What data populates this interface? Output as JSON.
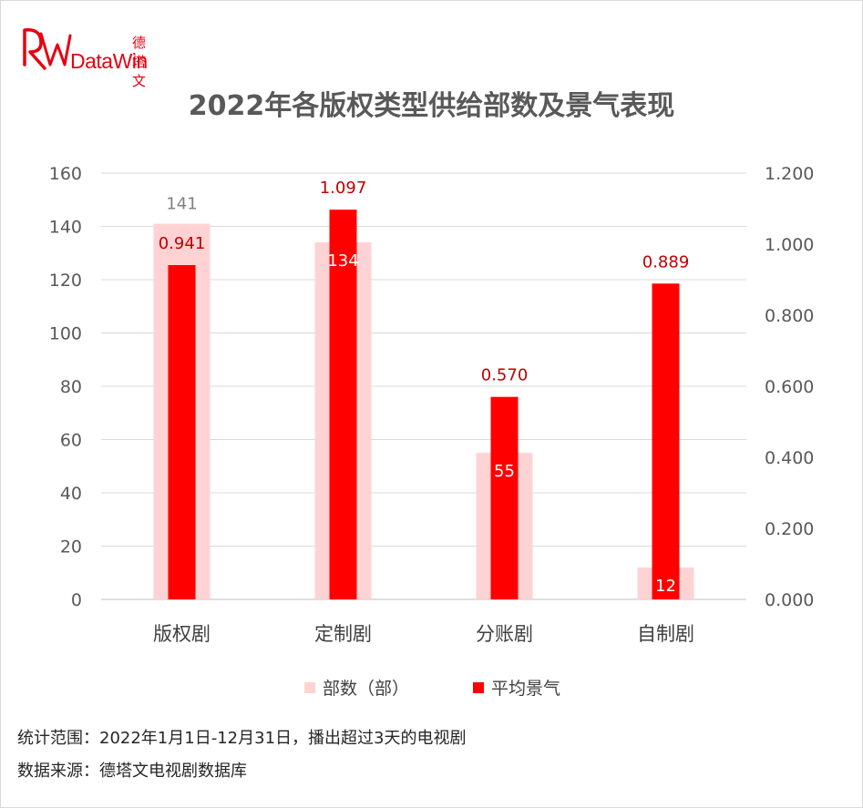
{
  "logo": {
    "brand_cn": "德塔文",
    "brand_en": "DataWin"
  },
  "chart_data": {
    "type": "bar",
    "title": "2022年各版权类型供给部数及景气表现",
    "categories": [
      "版权剧",
      "定制剧",
      "分账剧",
      "自制剧"
    ],
    "series": [
      {
        "name": "部数（部）",
        "axis": "left",
        "values": [
          141,
          134,
          55,
          12
        ],
        "color": "#ffd3d3",
        "labels": [
          "141",
          "134",
          "55",
          "12"
        ]
      },
      {
        "name": "平均景气",
        "axis": "right",
        "values": [
          0.941,
          1.097,
          0.57,
          0.889
        ],
        "color": "#ff0000",
        "labels": [
          "0.941",
          "1.097",
          "0.570",
          "0.889"
        ]
      }
    ],
    "y_left": {
      "min": 0,
      "max": 160,
      "ticks": [
        "0",
        "20",
        "40",
        "60",
        "80",
        "100",
        "120",
        "140",
        "160"
      ]
    },
    "y_right": {
      "min": 0,
      "max": 1.2,
      "ticks": [
        "0.000",
        "0.200",
        "0.400",
        "0.600",
        "0.800",
        "1.000",
        "1.200"
      ]
    },
    "grid": true,
    "legend_position": "bottom"
  },
  "footnotes": {
    "scope": "统计范围：2022年1月1日-12月31日，播出超过3天的电视剧",
    "source": "数据来源：德塔文电视剧数据库"
  },
  "colors": {
    "brand": "#e60012",
    "count_bar": "#ffd3d3",
    "index_bar": "#ff0000",
    "count_label": "#7f7f7f",
    "index_label": "#c00000"
  }
}
